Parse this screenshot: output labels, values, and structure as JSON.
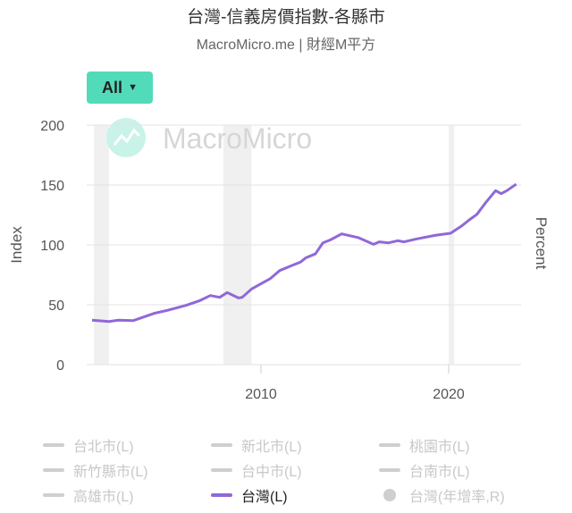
{
  "title": "台灣-信義房價指數-各縣市",
  "subtitle": "MacroMicro.me | 財經M平方",
  "range_button": {
    "label": "All",
    "icon": "caret-down-icon"
  },
  "watermark": "MacroMicro",
  "colors": {
    "series": "#9068d8",
    "button": "#52dbb9",
    "inactive": "#cfcfcf",
    "band": "#f0f0f0"
  },
  "legend": [
    {
      "label": "台北市(L)",
      "active": false,
      "marker": "line"
    },
    {
      "label": "新北市(L)",
      "active": false,
      "marker": "line"
    },
    {
      "label": "桃園市(L)",
      "active": false,
      "marker": "line"
    },
    {
      "label": "新竹縣市(L)",
      "active": false,
      "marker": "line"
    },
    {
      "label": "台中市(L)",
      "active": false,
      "marker": "line"
    },
    {
      "label": "台南市(L)",
      "active": false,
      "marker": "line"
    },
    {
      "label": "高雄市(L)",
      "active": false,
      "marker": "line"
    },
    {
      "label": "台灣(L)",
      "active": true,
      "marker": "line"
    },
    {
      "label": "台灣(年增率,R)",
      "active": false,
      "marker": "dot"
    }
  ],
  "chart_data": {
    "type": "line",
    "title": "台灣-信義房價指數-各縣市",
    "ylabel": "Index",
    "ylabel_right": "Percent",
    "ylim": [
      0,
      200
    ],
    "yticks": [
      0,
      50,
      100,
      150,
      200
    ],
    "xlim": [
      2000.7,
      2023.9
    ],
    "xticks": [
      {
        "value": 2010,
        "label": "2010"
      },
      {
        "value": 2020,
        "label": "2020"
      }
    ],
    "recession_bands": [
      [
        2001.1,
        2001.9
      ],
      [
        2008.0,
        2009.5
      ],
      [
        2020.0,
        2020.3
      ]
    ],
    "series": [
      {
        "name": "台灣(L)",
        "x": [
          2001.0,
          2001.9,
          2002.4,
          2003.2,
          2004.3,
          2005.0,
          2006.0,
          2006.7,
          2007.3,
          2007.8,
          2008.2,
          2008.8,
          2009.0,
          2009.5,
          2010.5,
          2011.0,
          2011.7,
          2012.1,
          2012.4,
          2012.9,
          2013.3,
          2013.7,
          2014.3,
          2015.2,
          2016.0,
          2016.3,
          2016.8,
          2017.3,
          2017.6,
          2018.3,
          2019.3,
          2020.1,
          2020.7,
          2021.1,
          2021.5,
          2022.0,
          2022.5,
          2022.8,
          2023.1,
          2023.6
        ],
        "values": [
          37.1,
          36,
          37.1,
          36.8,
          42.8,
          45.3,
          49.5,
          53.2,
          57.7,
          56.2,
          60.2,
          55.7,
          56.2,
          63.2,
          71.9,
          78.6,
          83.1,
          85.6,
          89.3,
          92.5,
          101.7,
          104.2,
          109.2,
          106,
          100.5,
          102.5,
          101.7,
          103.5,
          102.5,
          105,
          108,
          109.7,
          115.9,
          120.9,
          125.4,
          135.8,
          145.3,
          142.8,
          145.3,
          150.7
        ]
      }
    ]
  }
}
